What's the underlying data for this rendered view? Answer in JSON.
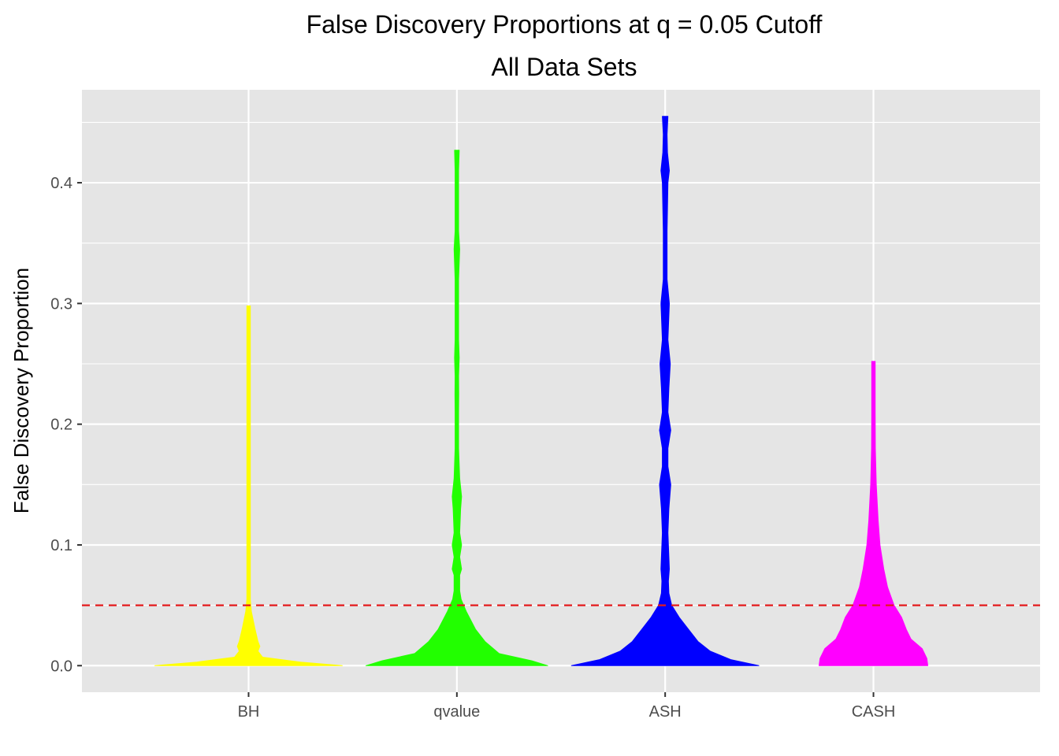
{
  "chart_data": {
    "type": "violin",
    "title": "False Discovery Proportions at q = 0.05 Cutoff",
    "subtitle": "All Data Sets",
    "xlabel": "",
    "ylabel": "False Discovery Proportion",
    "ylim": [
      -0.022,
      0.477
    ],
    "yticks": [
      0.0,
      0.1,
      0.2,
      0.3,
      0.4
    ],
    "ytick_labels": [
      "0.0",
      "0.1",
      "0.2",
      "0.3",
      "0.4"
    ],
    "categories": [
      "BH",
      "qvalue",
      "ASH",
      "CASH"
    ],
    "reference_line": {
      "y": 0.05,
      "color": "#e41a1c",
      "style": "dashed"
    },
    "grid": true,
    "series": [
      {
        "category": "BH",
        "color": "#ffff00",
        "y_min": 0.0,
        "y_max": 0.298,
        "profile": [
          [
            0.0,
            1.0
          ],
          [
            0.003,
            0.55
          ],
          [
            0.007,
            0.15
          ],
          [
            0.012,
            0.1
          ],
          [
            0.016,
            0.12
          ],
          [
            0.02,
            0.1
          ],
          [
            0.03,
            0.07
          ],
          [
            0.045,
            0.03
          ],
          [
            0.055,
            0.015
          ],
          [
            0.065,
            0.012
          ],
          [
            0.075,
            0.017
          ],
          [
            0.082,
            0.01
          ],
          [
            0.09,
            0.012
          ],
          [
            0.1,
            0.018
          ],
          [
            0.11,
            0.01
          ],
          [
            0.125,
            0.008
          ],
          [
            0.14,
            0.012
          ],
          [
            0.155,
            0.006
          ],
          [
            0.185,
            0.006
          ],
          [
            0.205,
            0.015
          ],
          [
            0.215,
            0.006
          ],
          [
            0.25,
            0.006
          ],
          [
            0.28,
            0.007
          ],
          [
            0.298,
            0.012
          ]
        ]
      },
      {
        "category": "qvalue",
        "color": "#22ff00",
        "y_min": 0.0,
        "y_max": 0.427,
        "profile": [
          [
            0.0,
            0.97
          ],
          [
            0.004,
            0.8
          ],
          [
            0.01,
            0.45
          ],
          [
            0.02,
            0.3
          ],
          [
            0.03,
            0.2
          ],
          [
            0.045,
            0.1
          ],
          [
            0.055,
            0.045
          ],
          [
            0.062,
            0.03
          ],
          [
            0.075,
            0.03
          ],
          [
            0.08,
            0.05
          ],
          [
            0.09,
            0.03
          ],
          [
            0.1,
            0.05
          ],
          [
            0.11,
            0.03
          ],
          [
            0.12,
            0.035
          ],
          [
            0.13,
            0.04
          ],
          [
            0.14,
            0.05
          ],
          [
            0.155,
            0.03
          ],
          [
            0.18,
            0.015
          ],
          [
            0.21,
            0.01
          ],
          [
            0.225,
            0.02
          ],
          [
            0.24,
            0.01
          ],
          [
            0.255,
            0.025
          ],
          [
            0.27,
            0.01
          ],
          [
            0.32,
            0.01
          ],
          [
            0.345,
            0.03
          ],
          [
            0.36,
            0.01
          ],
          [
            0.41,
            0.01
          ],
          [
            0.427,
            0.025
          ]
        ]
      },
      {
        "category": "ASH",
        "color": "#0000ff",
        "y_min": 0.0,
        "y_max": 0.455,
        "profile": [
          [
            0.0,
            1.0
          ],
          [
            0.005,
            0.7
          ],
          [
            0.012,
            0.48
          ],
          [
            0.02,
            0.35
          ],
          [
            0.03,
            0.25
          ],
          [
            0.04,
            0.15
          ],
          [
            0.05,
            0.07
          ],
          [
            0.06,
            0.04
          ],
          [
            0.07,
            0.035
          ],
          [
            0.08,
            0.045
          ],
          [
            0.09,
            0.04
          ],
          [
            0.1,
            0.035
          ],
          [
            0.11,
            0.03
          ],
          [
            0.13,
            0.04
          ],
          [
            0.15,
            0.06
          ],
          [
            0.165,
            0.03
          ],
          [
            0.18,
            0.03
          ],
          [
            0.195,
            0.06
          ],
          [
            0.21,
            0.03
          ],
          [
            0.23,
            0.04
          ],
          [
            0.25,
            0.055
          ],
          [
            0.27,
            0.03
          ],
          [
            0.3,
            0.045
          ],
          [
            0.32,
            0.02
          ],
          [
            0.36,
            0.02
          ],
          [
            0.4,
            0.03
          ],
          [
            0.41,
            0.045
          ],
          [
            0.425,
            0.025
          ],
          [
            0.44,
            0.02
          ],
          [
            0.455,
            0.03
          ]
        ]
      },
      {
        "category": "CASH",
        "color": "#ff00ff",
        "y_min": 0.0,
        "y_max": 0.252,
        "profile": [
          [
            0.0,
            0.58
          ],
          [
            0.006,
            0.57
          ],
          [
            0.014,
            0.52
          ],
          [
            0.022,
            0.4
          ],
          [
            0.03,
            0.35
          ],
          [
            0.04,
            0.3
          ],
          [
            0.05,
            0.22
          ],
          [
            0.065,
            0.15
          ],
          [
            0.08,
            0.11
          ],
          [
            0.1,
            0.07
          ],
          [
            0.12,
            0.05
          ],
          [
            0.15,
            0.03
          ],
          [
            0.18,
            0.02
          ],
          [
            0.21,
            0.015
          ],
          [
            0.24,
            0.012
          ],
          [
            0.252,
            0.015
          ]
        ]
      }
    ]
  }
}
